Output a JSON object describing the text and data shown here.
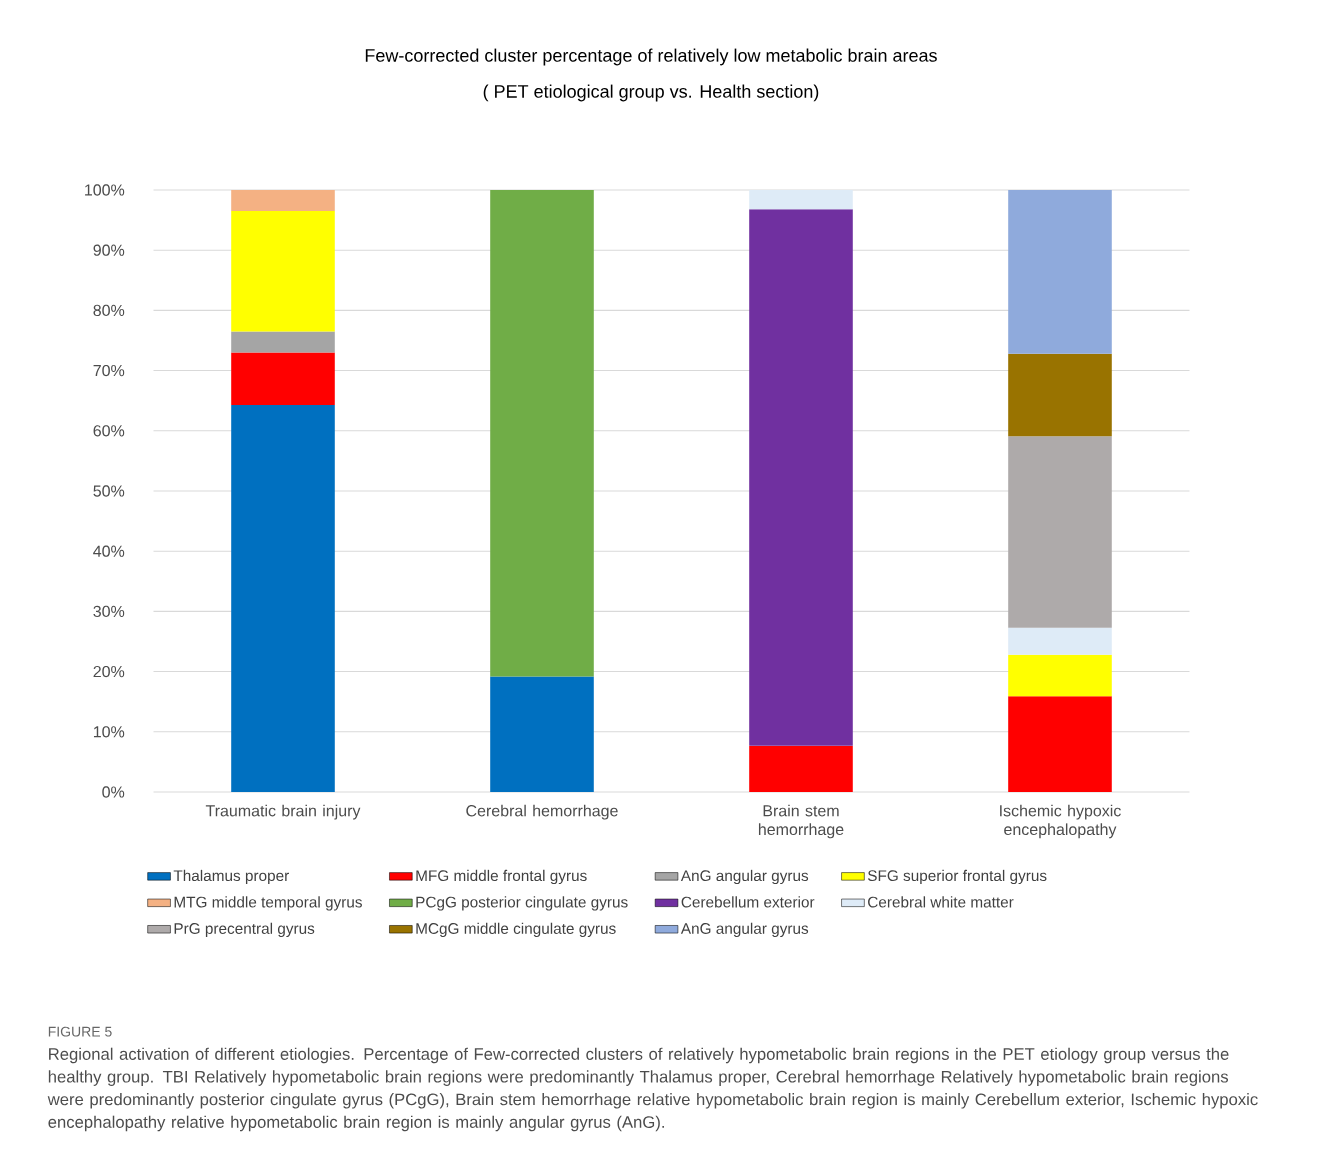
{
  "chart_data": {
    "type": "bar",
    "stacked": true,
    "title": "Few-corrected cluster percentage of relatively low metabolic brain areas",
    "subtitle": "( PET etiological group vs. Health section)",
    "categories": [
      "Traumatic brain injury",
      "Cerebral hemorrhage",
      "Brain stem hemorrhage",
      "Ischemic hypoxic encephalopathy"
    ],
    "series": [
      {
        "name": "Thalamus proper",
        "color": "#0070c0",
        "values": [
          64.3,
          19.2,
          0,
          0
        ]
      },
      {
        "name": "MFG middle frontal gyrus",
        "color": "#ff0000",
        "values": [
          8.7,
          0,
          7.7,
          15.9
        ]
      },
      {
        "name": "AnG angular gyrus",
        "color": "#a5a5a5",
        "values": [
          3.5,
          0,
          0,
          0
        ]
      },
      {
        "name": "SFG superior frontal gyrus",
        "color": "#ffff00",
        "values": [
          20.0,
          0,
          0,
          6.9
        ]
      },
      {
        "name": "MTG middle temporal gyrus",
        "color": "#f4b183",
        "values": [
          3.5,
          0,
          0,
          0
        ]
      },
      {
        "name": "PCgG posterior cingulate gyrus",
        "color": "#70ad47",
        "values": [
          0,
          80.8,
          0,
          0
        ]
      },
      {
        "name": "Cerebellum exterior",
        "color": "#7030a0",
        "values": [
          0,
          0,
          89.1,
          0
        ]
      },
      {
        "name": "Cerebral white matter",
        "color": "#deebf7",
        "values": [
          0,
          0,
          3.2,
          4.5
        ]
      },
      {
        "name": "PrG precentral gyrus",
        "color": "#aeaaaa",
        "values": [
          0,
          0,
          0,
          31.8
        ]
      },
      {
        "name": "MCgG middle cingulate gyrus",
        "color": "#997300",
        "values": [
          0,
          0,
          0,
          13.7
        ]
      },
      {
        "name": "AnG angular gyrus",
        "color": "#8faadc",
        "values": [
          0,
          0,
          0,
          27.2
        ]
      }
    ],
    "ylim": [
      0,
      100
    ],
    "yticks": [
      {
        "value": 0,
        "label": "0%"
      },
      {
        "value": 10,
        "label": "10%"
      },
      {
        "value": 20,
        "label": "20%"
      },
      {
        "value": 30,
        "label": "30%"
      },
      {
        "value": 40,
        "label": "40%"
      },
      {
        "value": 50,
        "label": "50%"
      },
      {
        "value": 60,
        "label": "60%"
      },
      {
        "value": 70,
        "label": "70%"
      },
      {
        "value": 80,
        "label": "80%"
      },
      {
        "value": 90,
        "label": "90%"
      },
      {
        "value": 100,
        "label": "100%"
      }
    ],
    "grid": "y",
    "legend": "bottom",
    "annotations": [
      "FIGURE 5",
      "Regional activation of different etiologies. Percentage of Few-corrected clusters of relatively hypometabolic brain regions in the PET etiology group versus the healthy group. TBI Relatively hypometabolic brain regions were predominantly Thalamus proper, Cerebral hemorrhage Relatively hypometabolic brain regions were predominantly posterior cingulate gyrus (PCgG), Brain stem hemorrhage relative hypometabolic brain region is mainly Cerebellum exterior, Ischemic hypoxic encephalopathy relative hypometabolic brain region is mainly angular gyrus (AnG)."
    ]
  }
}
